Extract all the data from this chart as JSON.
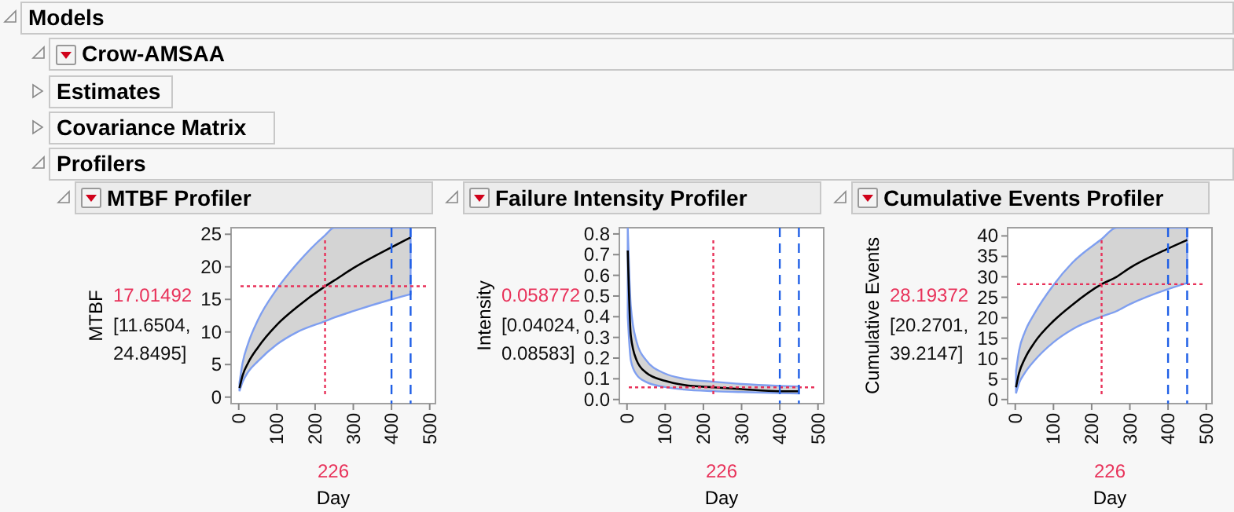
{
  "chart_data": [
    {
      "type": "other",
      "title": "Models",
      "annotations": [
        "Crow-AMSAA",
        "Estimates",
        "Covariance Matrix",
        "Profilers"
      ]
    },
    {
      "type": "line",
      "title": "MTBF Profiler",
      "xlabel": "Day",
      "ylabel": "MTBF",
      "x": [
        2,
        10,
        25,
        50,
        100,
        150,
        226,
        250,
        300,
        400,
        450
      ],
      "series": [
        {
          "color": "#000000",
          "values": [
            1.4,
            3.3,
            5.3,
            7.6,
            11.1,
            13.7,
            17.01492,
            17.9,
            19.8,
            23.0,
            24.5
          ],
          "lower": [
            0.9,
            2.3,
            3.9,
            5.5,
            8.1,
            9.9,
            11.6504,
            12.2,
            13.2,
            15.0,
            15.8
          ],
          "upper": [
            2.2,
            5.2,
            8.3,
            11.8,
            16.6,
            20.3,
            24.8495,
            26,
            26,
            26,
            26
          ]
        }
      ],
      "xlim": [
        -20,
        515
      ],
      "ylim": [
        -1,
        26
      ],
      "xticks": [
        0,
        100,
        200,
        300,
        400,
        500
      ],
      "yticks": [
        0,
        5,
        10,
        15,
        20,
        25
      ],
      "ref_lines": [
        {
          "axis": "y",
          "value": 17.01492,
          "label": "17.01492",
          "color": "#e8325a",
          "line_style": "dotted"
        },
        {
          "axis": "x",
          "value": 226,
          "label": "226",
          "color": "#e8325a",
          "line_style": "dotted"
        },
        {
          "axis": "x",
          "value": 400,
          "color": "#1f5fe6",
          "line_style": "dashed"
        },
        {
          "axis": "x",
          "value": 450,
          "color": "#1f5fe6",
          "line_style": "dashed"
        }
      ],
      "annotations": [
        "[11.6504, 24.8495]"
      ]
    },
    {
      "type": "line",
      "title": "Failure Intensity Profiler",
      "xlabel": "Day",
      "ylabel": "Intensity",
      "x": [
        2,
        10,
        25,
        50,
        100,
        150,
        226,
        300,
        400,
        450
      ],
      "series": [
        {
          "color": "#000000",
          "values": [
            0.72,
            0.31,
            0.19,
            0.13,
            0.09,
            0.07,
            0.058772,
            0.05,
            0.04,
            0.04
          ],
          "lower": [
            0.4,
            0.19,
            0.12,
            0.085,
            0.06,
            0.048,
            0.04024,
            0.036,
            0.031,
            0.029
          ],
          "upper": [
            0.83,
            0.45,
            0.28,
            0.19,
            0.125,
            0.1,
            0.08583,
            0.075,
            0.066,
            0.063
          ]
        }
      ],
      "xlim": [
        -20,
        515
      ],
      "ylim": [
        -0.02,
        0.83
      ],
      "xticks": [
        0,
        100,
        200,
        300,
        400,
        500
      ],
      "yticks": [
        {
          "value": 0,
          "label": "0.0"
        },
        0.1,
        0.2,
        0.3,
        0.4,
        0.5,
        0.6,
        0.7,
        0.8
      ],
      "ref_lines": [
        {
          "axis": "y",
          "value": 0.058772,
          "label": "0.058772",
          "color": "#e8325a",
          "line_style": "dotted"
        },
        {
          "axis": "x",
          "value": 226,
          "label": "226",
          "color": "#e8325a",
          "line_style": "dotted"
        },
        {
          "axis": "x",
          "value": 400,
          "color": "#1f5fe6",
          "line_style": "dashed"
        },
        {
          "axis": "x",
          "value": 450,
          "color": "#1f5fe6",
          "line_style": "dashed"
        }
      ],
      "annotations": [
        "[0.04024, 0.08583]"
      ]
    },
    {
      "type": "line",
      "title": "Cumulative Events Profiler",
      "xlabel": "Day",
      "ylabel": "Cumulative Events",
      "x": [
        2,
        10,
        25,
        50,
        100,
        150,
        226,
        265,
        300,
        400,
        450
      ],
      "series": [
        {
          "color": "#000000",
          "values": [
            3,
            6.5,
            10,
            13.9,
            19.2,
            23.2,
            28.19372,
            30,
            32.2,
            36.9,
            39
          ],
          "lower": [
            1.5,
            4,
            6.5,
            9.5,
            14,
            17.2,
            20.2701,
            21.6,
            23.3,
            27,
            28.5
          ],
          "upper": [
            7,
            12,
            16.5,
            21,
            28,
            33.5,
            39.2147,
            42,
            42,
            42,
            42
          ]
        }
      ],
      "xlim": [
        -20,
        515
      ],
      "ylim": [
        -1,
        42
      ],
      "xticks": [
        0,
        100,
        200,
        300,
        400,
        500
      ],
      "yticks": [
        0,
        5,
        10,
        15,
        20,
        25,
        30,
        35,
        40
      ],
      "ref_lines": [
        {
          "axis": "y",
          "value": 28.19372,
          "label": "28.19372",
          "color": "#e8325a",
          "line_style": "dotted"
        },
        {
          "axis": "x",
          "value": 226,
          "label": "226",
          "color": "#e8325a",
          "line_style": "dotted"
        },
        {
          "axis": "x",
          "value": 400,
          "color": "#1f5fe6",
          "line_style": "dashed"
        },
        {
          "axis": "x",
          "value": 450,
          "color": "#1f5fe6",
          "line_style": "dashed"
        }
      ],
      "annotations": [
        "[20.2701, 39.2147]"
      ]
    }
  ]
}
